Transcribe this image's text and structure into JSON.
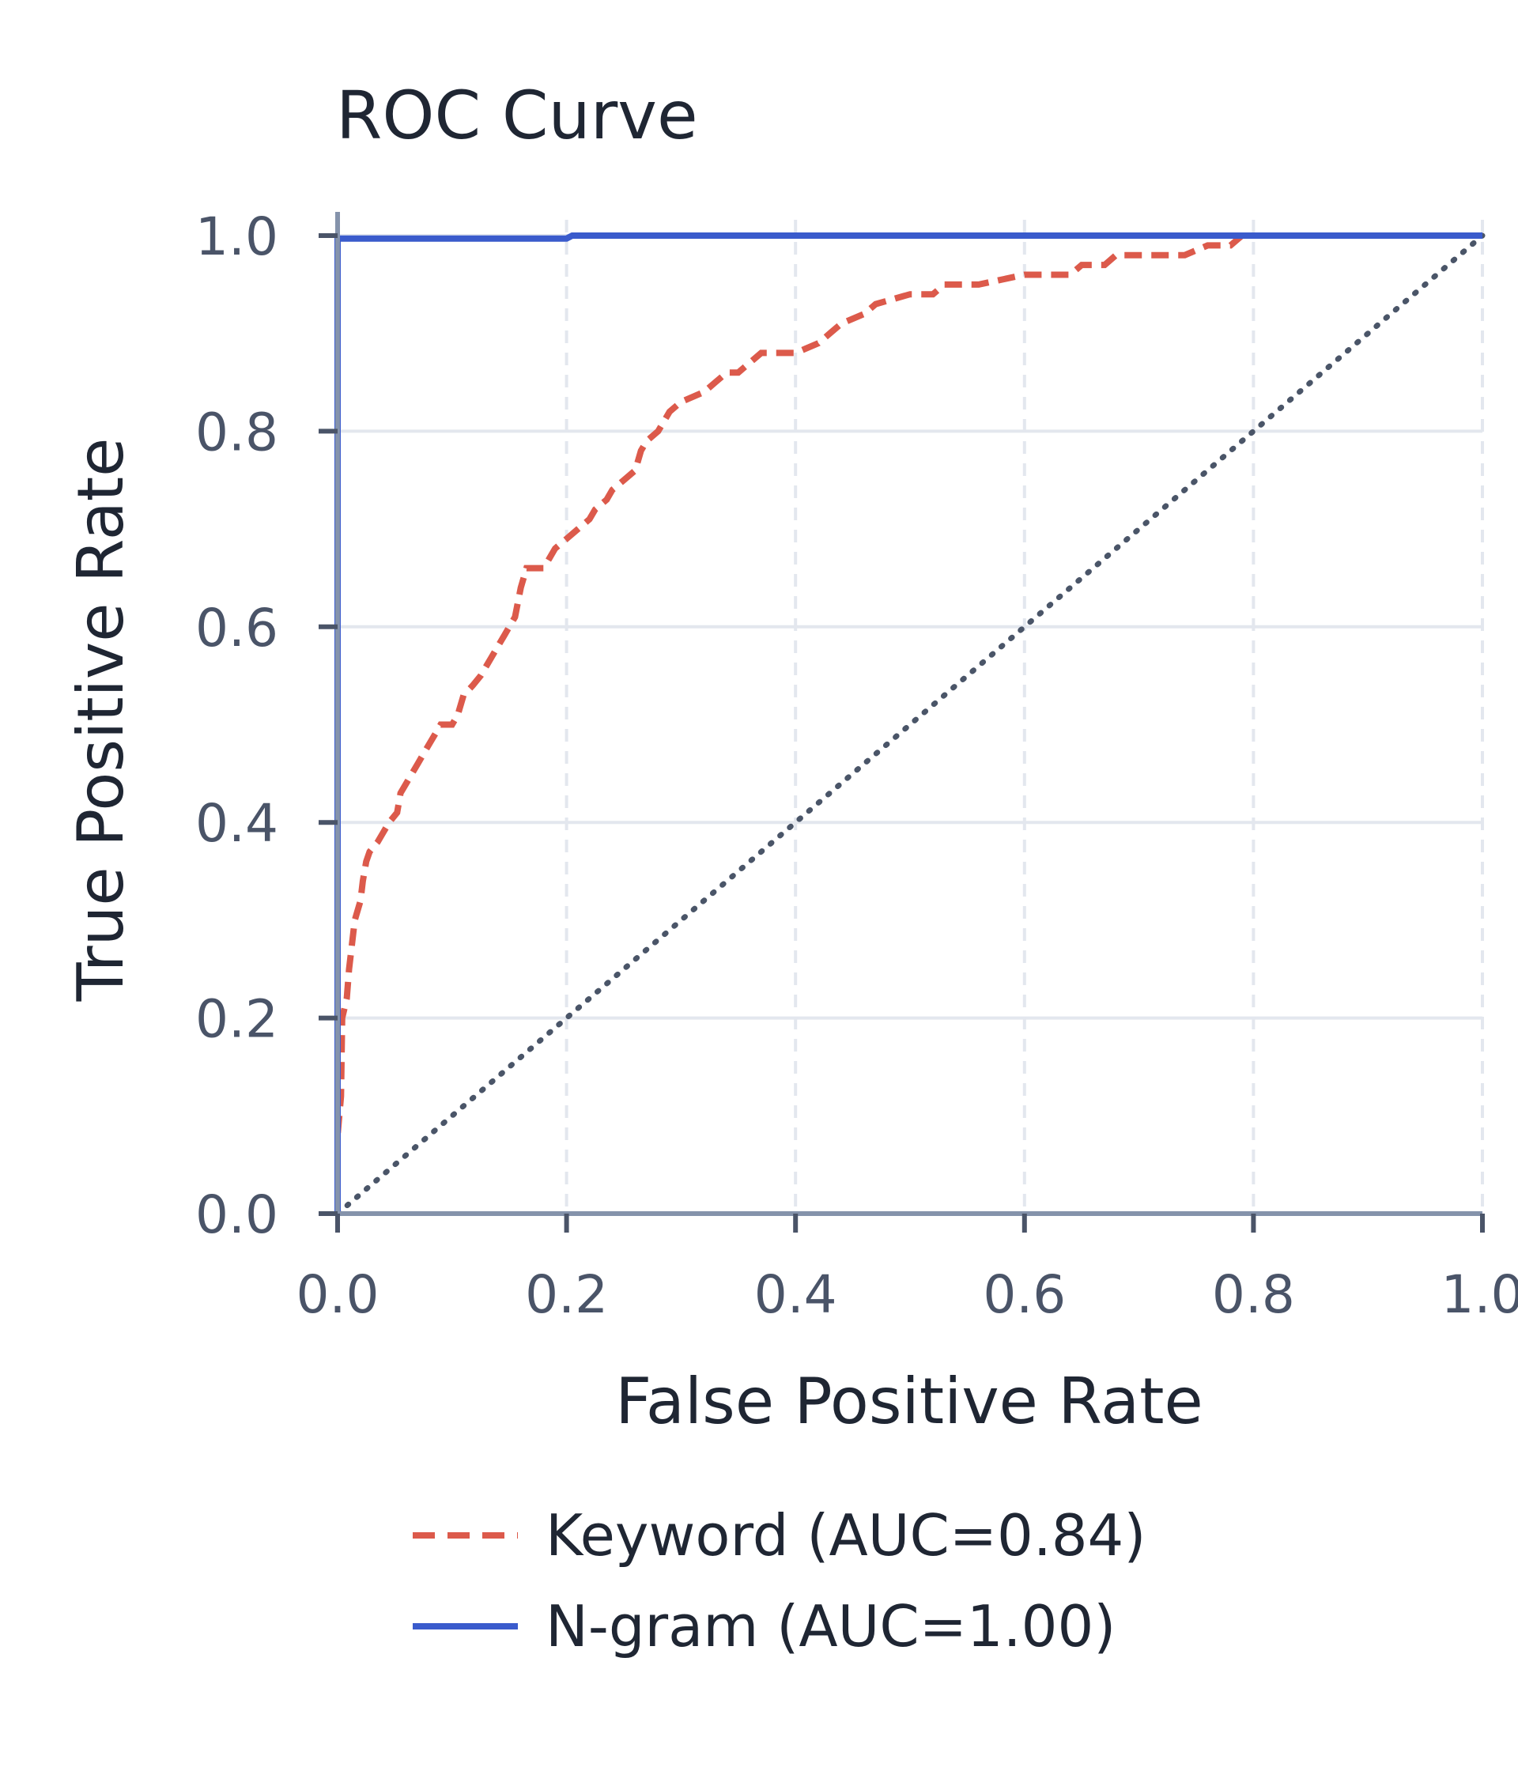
{
  "chart_data": {
    "type": "line",
    "title": "ROC Curve",
    "xlabel": "False Positive Rate",
    "ylabel": "True Positive Rate",
    "xlim": [
      0,
      1
    ],
    "ylim": [
      0,
      1
    ],
    "x_ticks": [
      "0.0",
      "0.2",
      "0.4",
      "0.6",
      "0.8",
      "1.0"
    ],
    "y_ticks": [
      "0.0",
      "0.2",
      "0.4",
      "0.6",
      "0.8",
      "1.0"
    ],
    "grid": true,
    "legend_position": "bottom",
    "reference_line": {
      "x": [
        0,
        1
      ],
      "y": [
        0,
        1
      ],
      "style": "dotted",
      "color": "#4a5568"
    },
    "series": [
      {
        "name": "Keyword (AUC=0.84)",
        "color": "#dc5a4b",
        "style": "dashed",
        "x": [
          0.0,
          0.0,
          0.003,
          0.004,
          0.008,
          0.01,
          0.012,
          0.015,
          0.02,
          0.022,
          0.025,
          0.028,
          0.035,
          0.04,
          0.045,
          0.052,
          0.055,
          0.06,
          0.065,
          0.07,
          0.075,
          0.08,
          0.085,
          0.09,
          0.1,
          0.105,
          0.11,
          0.118,
          0.125,
          0.13,
          0.135,
          0.14,
          0.145,
          0.15,
          0.155,
          0.16,
          0.165,
          0.18,
          0.185,
          0.19,
          0.2,
          0.21,
          0.22,
          0.225,
          0.235,
          0.24,
          0.25,
          0.26,
          0.265,
          0.27,
          0.28,
          0.285,
          0.29,
          0.3,
          0.32,
          0.33,
          0.34,
          0.35,
          0.36,
          0.37,
          0.38,
          0.4,
          0.42,
          0.43,
          0.44,
          0.46,
          0.47,
          0.5,
          0.52,
          0.53,
          0.56,
          0.6,
          0.64,
          0.65,
          0.67,
          0.68,
          0.7,
          0.72,
          0.74,
          0.76,
          0.78,
          0.79,
          0.8,
          0.85,
          0.9,
          1.0
        ],
        "y": [
          0.0,
          0.08,
          0.12,
          0.2,
          0.22,
          0.25,
          0.27,
          0.3,
          0.32,
          0.34,
          0.36,
          0.37,
          0.38,
          0.39,
          0.4,
          0.41,
          0.43,
          0.44,
          0.45,
          0.46,
          0.47,
          0.48,
          0.49,
          0.5,
          0.5,
          0.51,
          0.53,
          0.54,
          0.55,
          0.56,
          0.57,
          0.58,
          0.59,
          0.6,
          0.61,
          0.64,
          0.66,
          0.66,
          0.67,
          0.68,
          0.69,
          0.7,
          0.71,
          0.72,
          0.73,
          0.74,
          0.75,
          0.76,
          0.78,
          0.79,
          0.8,
          0.81,
          0.82,
          0.83,
          0.84,
          0.85,
          0.86,
          0.86,
          0.87,
          0.88,
          0.88,
          0.88,
          0.89,
          0.9,
          0.91,
          0.92,
          0.93,
          0.94,
          0.94,
          0.95,
          0.95,
          0.96,
          0.96,
          0.97,
          0.97,
          0.98,
          0.98,
          0.98,
          0.98,
          0.99,
          0.99,
          1.0,
          1.0,
          1.0,
          1.0,
          1.0
        ]
      },
      {
        "name": "N-gram (AUC=1.00)",
        "color": "#3a5bcc",
        "style": "solid",
        "x": [
          0.0,
          0.0,
          0.2,
          0.205,
          1.0
        ],
        "y": [
          0.0,
          0.997,
          0.997,
          1.0,
          1.0
        ]
      }
    ]
  }
}
